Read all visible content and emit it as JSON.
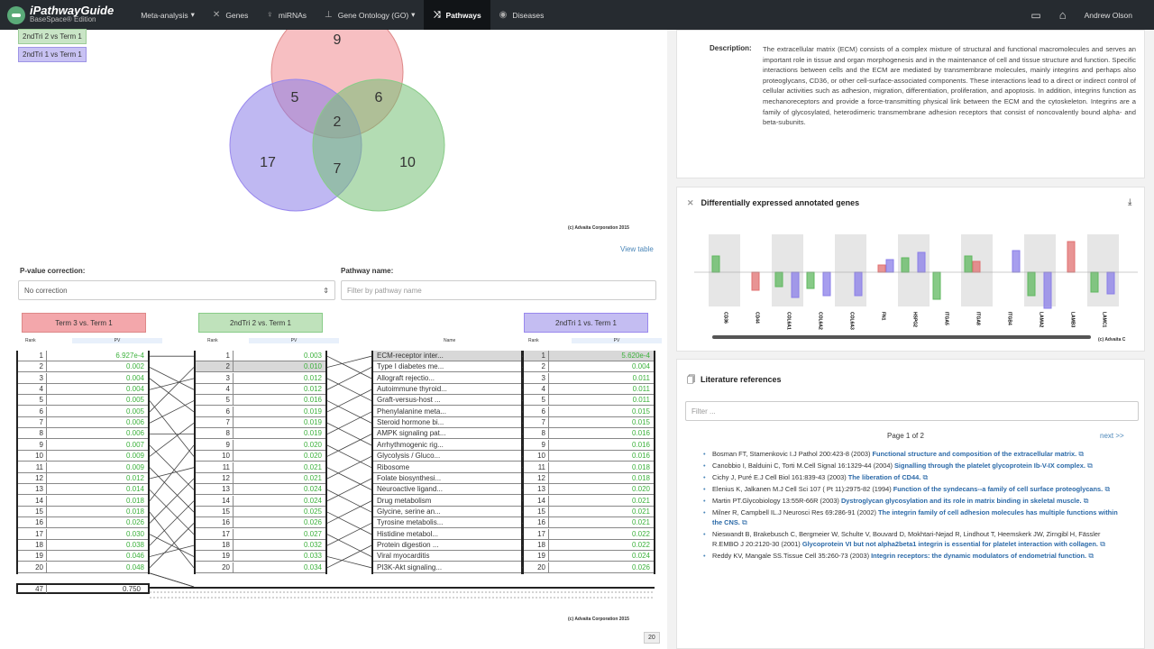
{
  "nav": {
    "brand": "iPathwayGuide",
    "brand_sub": "BaseSpace® Edition",
    "items": [
      {
        "label": "Meta-analysis",
        "icon": "meta-analysis-icon"
      },
      {
        "label": "Genes",
        "icon": "genes-icon"
      },
      {
        "label": "miRNAs",
        "icon": "mirna-icon"
      },
      {
        "label": "Gene Ontology (GO)",
        "icon": "gene-ontology-icon"
      },
      {
        "label": "Pathways",
        "icon": "pathways-icon"
      },
      {
        "label": "Diseases",
        "icon": "diseases-icon"
      }
    ],
    "user": "Andrew Olson"
  },
  "venn": {
    "legend": [
      "2ndTri 2 vs Term 1",
      "2ndTri 1 vs Term 1"
    ],
    "counts": {
      "top": "9",
      "left_top": "5",
      "right_top": "6",
      "center": "2",
      "left": "17",
      "bottom": "7",
      "right": "10"
    },
    "copyright": "(c) Advaita Corporation 2015",
    "view_table": "View table"
  },
  "filters": {
    "pvalue_label": "P-value correction:",
    "pvalue_value": "No correction",
    "pathway_label": "Pathway name:",
    "pathway_placeholder": "Filter by pathway name"
  },
  "comparison": {
    "headers": [
      "Term 3 vs. Term 1",
      "2ndTri 2 vs. Term 1",
      "2ndTri 1 vs. Term 1"
    ],
    "rank_label": "Rank",
    "pv_label": "PV",
    "name_label": "Name",
    "col1": [
      [
        "1",
        "6.927e-4"
      ],
      [
        "2",
        "0.002"
      ],
      [
        "3",
        "0.004"
      ],
      [
        "4",
        "0.004"
      ],
      [
        "5",
        "0.005"
      ],
      [
        "6",
        "0.005"
      ],
      [
        "7",
        "0.006"
      ],
      [
        "8",
        "0.006"
      ],
      [
        "9",
        "0.007"
      ],
      [
        "10",
        "0.009"
      ],
      [
        "11",
        "0.009"
      ],
      [
        "12",
        "0.012"
      ],
      [
        "13",
        "0.014"
      ],
      [
        "14",
        "0.018"
      ],
      [
        "15",
        "0.018"
      ],
      [
        "16",
        "0.026"
      ],
      [
        "17",
        "0.030"
      ],
      [
        "18",
        "0.038"
      ],
      [
        "19",
        "0.046"
      ],
      [
        "20",
        "0.048"
      ]
    ],
    "col2": [
      [
        "1",
        "0.003"
      ],
      [
        "2",
        "0.010"
      ],
      [
        "3",
        "0.012"
      ],
      [
        "4",
        "0.012"
      ],
      [
        "5",
        "0.016"
      ],
      [
        "6",
        "0.019"
      ],
      [
        "7",
        "0.019"
      ],
      [
        "8",
        "0.019"
      ],
      [
        "9",
        "0.020"
      ],
      [
        "10",
        "0.020"
      ],
      [
        "11",
        "0.021"
      ],
      [
        "12",
        "0.021"
      ],
      [
        "13",
        "0.024"
      ],
      [
        "14",
        "0.024"
      ],
      [
        "15",
        "0.025"
      ],
      [
        "16",
        "0.026"
      ],
      [
        "17",
        "0.027"
      ],
      [
        "18",
        "0.032"
      ],
      [
        "19",
        "0.033"
      ],
      [
        "20",
        "0.034"
      ]
    ],
    "names": [
      "ECM-receptor inter...",
      "Type I diabetes me...",
      "Allograft rejectio...",
      "Autoimmune thyroid...",
      "Graft-versus-host ...",
      "Phenylalanine meta...",
      "Steroid hormone bi...",
      "AMPK signaling pat...",
      "Arrhythmogenic rig...",
      "Glycolysis / Gluco...",
      "Ribosome",
      "Folate biosynthesi...",
      "Neuroactive ligand...",
      "Drug metabolism",
      "Glycine, serine an...",
      "Tyrosine metabolis...",
      "Histidine metabol...",
      "Protein digestion ...",
      "Viral myocarditis",
      "PI3K-Akt signaling..."
    ],
    "col3": [
      [
        "1",
        "5.620e-4"
      ],
      [
        "2",
        "0.004"
      ],
      [
        "3",
        "0.011"
      ],
      [
        "4",
        "0.011"
      ],
      [
        "5",
        "0.011"
      ],
      [
        "6",
        "0.015"
      ],
      [
        "7",
        "0.015"
      ],
      [
        "8",
        "0.016"
      ],
      [
        "9",
        "0.016"
      ],
      [
        "10",
        "0.016"
      ],
      [
        "11",
        "0.018"
      ],
      [
        "12",
        "0.018"
      ],
      [
        "13",
        "0.020"
      ],
      [
        "14",
        "0.021"
      ],
      [
        "15",
        "0.021"
      ],
      [
        "16",
        "0.021"
      ],
      [
        "17",
        "0.022"
      ],
      [
        "18",
        "0.022"
      ],
      [
        "19",
        "0.024"
      ],
      [
        "20",
        "0.026"
      ]
    ],
    "total_rank": "47",
    "total_pv": "0.750",
    "copyright": "(c) Advaita Corporation 2015",
    "page_badge": "20"
  },
  "description": {
    "label": "Description:",
    "text": "The extracellular matrix (ECM) consists of a complex mixture of structural and functional macromolecules and serves an important role in tissue and organ morphogenesis and in the maintenance of cell and tissue structure and function. Specific interactions between cells and the ECM are mediated by transmembrane molecules, mainly integrins and perhaps also proteoglycans, CD36, or other cell-surface-associated components. These interactions lead to a direct or indirect control of cellular activities such as adhesion, migration, differentiation, proliferation, and apoptosis. In addition, integrins function as mechanoreceptors and provide a force-transmitting physical link between the ECM and the cytoskeleton. Integrins are a family of glycosylated, heterodimeric transmembrane adhesion receptors that consist of noncovalently bound alpha- and beta-subunits."
  },
  "de_genes": {
    "title": "Differentially expressed annotated genes",
    "copyright": "(c) Advaita C"
  },
  "chart_data": {
    "type": "bar",
    "categories": [
      "CD36",
      "CD44",
      "COL6A1",
      "COL6A2",
      "COL6A3",
      "FN1",
      "HSPG2",
      "ITGA5",
      "ITGA8",
      "ITGB4",
      "LAMA2",
      "LAMB3",
      "LAMC1"
    ],
    "series": [
      {
        "color": "#5fb85f",
        "values": [
          0.9,
          0,
          -0.8,
          -0.9,
          0,
          0,
          0.8,
          -1.5,
          0.9,
          0,
          -1.3,
          0,
          -1.1
        ]
      },
      {
        "color": "#e07070",
        "values": [
          0,
          -1.0,
          0,
          0,
          0,
          0.4,
          0,
          0,
          0.6,
          0,
          0,
          1.7,
          0
        ]
      },
      {
        "color": "#8a7ee8",
        "values": [
          0,
          0,
          -1.4,
          -1.3,
          -1.3,
          0.7,
          1.1,
          0,
          0,
          1.2,
          -2.0,
          0,
          -1.2
        ]
      }
    ]
  },
  "literature": {
    "title": "Literature references",
    "filter_placeholder": "Filter ...",
    "page_info": "Page 1 of 2",
    "next": "next >>",
    "refs": [
      {
        "auth": "Bosman FT, Stamenkovic I.J Pathol 200:423-8 (2003)",
        "title": "Functional structure and composition of the extracellular matrix."
      },
      {
        "auth": "Canobbio I, Balduini C, Torti M.Cell Signal 16:1329-44 (2004)",
        "title": "Signalling through the platelet glycoprotein Ib-V-IX complex."
      },
      {
        "auth": "Cichy J, Puré E.J Cell Biol 161:839-43 (2003)",
        "title": "The liberation of CD44."
      },
      {
        "auth": "Elenius K, Jalkanen M.J Cell Sci 107 ( Pt 11):2975-82 (1994)",
        "title": "Function of the syndecans--a family of cell surface proteoglycans."
      },
      {
        "auth": "Martin PT.Glycobiology 13:55R-66R (2003)",
        "title": "Dystroglycan glycosylation and its role in matrix binding in skeletal muscle."
      },
      {
        "auth": "Milner R, Campbell IL.J Neurosci Res 69:286-91 (2002)",
        "title": "The integrin family of cell adhesion molecules has multiple functions within the CNS."
      },
      {
        "auth": "Nieswandt B, Brakebusch C, Bergmeier W, Schulte V, Bouvard D, Mokhtari-Nejad R, Lindhout T, Heemskerk JW, Zirngibl H, Fässler R.EMBO J 20:2120-30 (2001)",
        "title": "Glycoprotein VI but not alpha2beta1 integrin is essential for platelet interaction with collagen."
      },
      {
        "auth": "Reddy KV, Mangale SS.Tissue Cell 35:260-73 (2003)",
        "title": "Integrin receptors: the dynamic modulators of endometrial function."
      }
    ]
  }
}
